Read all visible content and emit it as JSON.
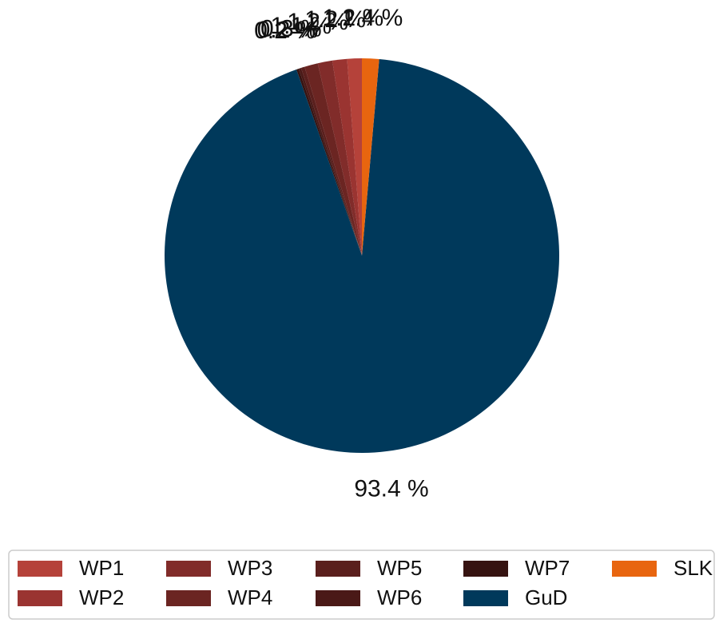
{
  "chart_data": {
    "type": "pie",
    "categories": [
      "WP1",
      "WP2",
      "WP3",
      "WP4",
      "WP5",
      "WP6",
      "WP7",
      "GuD",
      "SLK"
    ],
    "values": [
      1.2,
      1.2,
      1.2,
      1.1,
      0.3,
      0.2,
      0.2,
      93.4,
      1.4
    ],
    "labels": [
      "1.2 %",
      "1.2 %",
      "1.2 %",
      "1.1 %",
      "0.3 %",
      "0.2 %",
      "0.2 %",
      "93.4 %",
      "1.4 %"
    ],
    "colors": [
      "#b5423a",
      "#9a3431",
      "#812c2a",
      "#6b2522",
      "#5a1f1d",
      "#4a1917",
      "#361311",
      "#00395b",
      "#e8650f"
    ],
    "start_angle_deg": 90,
    "direction": "clockwise",
    "title": "",
    "legend": {
      "placement": "bottom",
      "columns": 5,
      "entries": [
        "WP1",
        "WP2",
        "WP3",
        "WP4",
        "WP5",
        "WP6",
        "WP7",
        "GuD",
        "SLK"
      ]
    }
  }
}
